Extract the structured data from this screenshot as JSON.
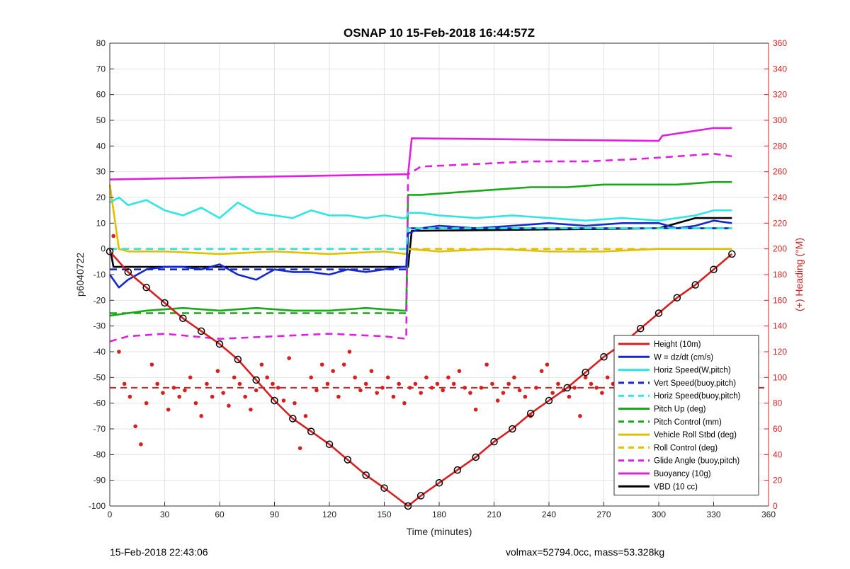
{
  "chart_data": {
    "type": "line",
    "title": "OSNAP 10 15-Feb-2018 16:44:57Z",
    "xlabel": "Time (minutes)",
    "ylabel": "p6040722",
    "ylabel_right": "(+) Heading (°M)",
    "xlim": [
      0,
      360
    ],
    "ylim": [
      -100,
      80
    ],
    "ylim_right": [
      0,
      360
    ],
    "x_ticks": [
      "0",
      "30",
      "60",
      "90",
      "120",
      "150",
      "180",
      "210",
      "240",
      "270",
      "300",
      "330",
      "360"
    ],
    "y_ticks": [
      "-100",
      "-90",
      "-80",
      "-70",
      "-60",
      "-50",
      "-40",
      "-30",
      "-20",
      "-10",
      "0",
      "10",
      "20",
      "30",
      "40",
      "50",
      "60",
      "70",
      "80"
    ],
    "y_ticks_right": [
      "0",
      "20",
      "40",
      "60",
      "80",
      "100",
      "120",
      "140",
      "160",
      "180",
      "200",
      "220",
      "240",
      "260",
      "280",
      "300",
      "320",
      "340",
      "360"
    ],
    "grid": true,
    "legend_position": "bottom-right",
    "series": [
      {
        "name": "Height (10m)",
        "color": "#d62020",
        "style": "solid",
        "x": [
          0,
          10,
          20,
          30,
          40,
          50,
          60,
          70,
          80,
          90,
          100,
          110,
          120,
          130,
          140,
          150,
          163,
          170,
          180,
          190,
          200,
          210,
          220,
          230,
          240,
          250,
          260,
          270,
          280,
          290,
          300,
          310,
          320,
          330,
          340
        ],
        "y": [
          -1,
          -9,
          -15,
          -21,
          -27,
          -32,
          -37,
          -43,
          -51,
          -59,
          -66,
          -71,
          -76,
          -82,
          -88,
          -93,
          -100,
          -96,
          -91,
          -86,
          -81,
          -75,
          -70,
          -64,
          -59,
          -54,
          -48,
          -42,
          -37,
          -31,
          -25,
          -19,
          -14,
          -8,
          -2
        ]
      },
      {
        "name": "W = dz/dt (cm/s)",
        "color": "#1428d0",
        "style": "solid",
        "x": [
          0,
          5,
          10,
          20,
          30,
          40,
          50,
          60,
          70,
          80,
          90,
          100,
          110,
          120,
          130,
          140,
          150,
          160,
          162,
          163,
          170,
          180,
          200,
          220,
          240,
          260,
          280,
          300,
          310,
          320,
          330,
          340
        ],
        "y": [
          -10,
          -15,
          -12,
          -8,
          -7,
          -7,
          -8,
          -6,
          -10,
          -12,
          -8,
          -9,
          -9,
          -10,
          -8,
          -9,
          -8,
          -7,
          -7,
          6,
          8,
          9,
          8,
          9,
          10,
          9,
          10,
          10,
          8,
          9,
          11,
          10
        ]
      },
      {
        "name": "Horiz Speed(W,pitch)",
        "color": "#2ee6e6",
        "style": "solid",
        "x": [
          0,
          5,
          10,
          20,
          30,
          40,
          50,
          60,
          70,
          80,
          90,
          100,
          110,
          120,
          130,
          140,
          150,
          160,
          162,
          163,
          170,
          180,
          200,
          220,
          240,
          260,
          280,
          300,
          310,
          320,
          330,
          340
        ],
        "y": [
          18,
          20,
          17,
          19,
          15,
          13,
          16,
          12,
          18,
          14,
          13,
          12,
          15,
          13,
          13,
          12,
          13,
          12,
          12,
          14,
          14,
          13,
          12,
          13,
          12,
          11,
          12,
          11,
          12,
          13,
          15,
          15
        ]
      },
      {
        "name": "Vert Speed(buoy,pitch)",
        "color": "#1428d0",
        "style": "dashed",
        "x": [
          0,
          162,
          163,
          340
        ],
        "y": [
          -8,
          -8,
          8,
          8
        ]
      },
      {
        "name": "Horiz Speed(buoy,pitch)",
        "color": "#2ee6e6",
        "style": "dashed",
        "x": [
          0,
          162,
          163,
          340
        ],
        "y": [
          0,
          0,
          8,
          8
        ]
      },
      {
        "name": "Pitch Up (deg)",
        "color": "#18a818",
        "style": "solid",
        "x": [
          0,
          10,
          20,
          40,
          60,
          80,
          100,
          120,
          140,
          160,
          162,
          163,
          170,
          190,
          210,
          230,
          250,
          270,
          290,
          310,
          330,
          340
        ],
        "y": [
          -26,
          -25,
          -24,
          -23,
          -24,
          -23,
          -24,
          -24,
          -23,
          -24,
          -24,
          21,
          21,
          22,
          23,
          24,
          24,
          25,
          25,
          25,
          26,
          26
        ]
      },
      {
        "name": "Pitch Control (mm)",
        "color": "#18a818",
        "style": "dashed",
        "x": [
          0,
          162,
          163,
          340
        ],
        "y": [
          -25,
          -25,
          8,
          8
        ]
      },
      {
        "name": "Vehicle Roll Stbd (deg)",
        "color": "#e0c000",
        "style": "solid",
        "x": [
          0,
          5,
          10,
          30,
          60,
          90,
          120,
          150,
          162,
          163,
          180,
          210,
          240,
          270,
          300,
          320,
          340
        ],
        "y": [
          25,
          0,
          -1,
          -1,
          -2,
          -1,
          -2,
          -1,
          -2,
          0,
          -1,
          0,
          -1,
          -1,
          0,
          0,
          0
        ]
      },
      {
        "name": "Roll Control (deg)",
        "color": "#e0c000",
        "style": "dashed",
        "x": [
          0,
          162,
          163,
          340
        ],
        "y": [
          0,
          0,
          0,
          0
        ]
      },
      {
        "name": "Glide Angle (buoy,pitch)",
        "color": "#e020e0",
        "style": "dashed",
        "x": [
          0,
          10,
          30,
          60,
          90,
          120,
          150,
          162,
          163,
          170,
          200,
          230,
          260,
          290,
          310,
          330,
          340
        ],
        "y": [
          -36,
          -34,
          -33,
          -35,
          -34,
          -33,
          -34,
          -35,
          29,
          32,
          33,
          34,
          34,
          35,
          36,
          37,
          36
        ]
      },
      {
        "name": "Buoyancy (10g)",
        "color": "#e020e0",
        "style": "solid",
        "x": [
          0,
          160,
          163,
          165,
          300,
          302,
          330,
          340
        ],
        "y": [
          27,
          29,
          29,
          43,
          42,
          44,
          47,
          47
        ]
      },
      {
        "name": "VBD (10 cc)",
        "color": "#000000",
        "style": "solid",
        "x": [
          0,
          1,
          2,
          163,
          165,
          300,
          320,
          340
        ],
        "y": [
          0,
          -3,
          -7,
          -7,
          7,
          8,
          12,
          12
        ]
      }
    ],
    "heading_scatter": {
      "color": "#d62020",
      "axis": "right",
      "mean_heading": 92,
      "x": [
        2,
        5,
        8,
        11,
        14,
        17,
        20,
        23,
        26,
        29,
        32,
        35,
        38,
        41,
        44,
        47,
        50,
        53,
        56,
        59,
        62,
        65,
        68,
        71,
        74,
        77,
        80,
        83,
        86,
        89,
        92,
        95,
        98,
        101,
        104,
        107,
        110,
        113,
        116,
        119,
        122,
        125,
        128,
        131,
        134,
        137,
        140,
        143,
        146,
        149,
        152,
        155,
        158,
        161,
        164,
        167,
        170,
        173,
        176,
        179,
        182,
        185,
        188,
        191,
        194,
        197,
        200,
        203,
        206,
        209,
        212,
        215,
        218,
        221,
        224,
        227,
        230,
        233,
        236,
        239,
        242,
        245,
        248,
        251,
        254,
        257,
        260,
        263,
        266,
        269,
        272,
        275,
        278,
        281,
        284,
        287,
        290,
        293,
        296,
        299,
        302,
        305,
        308,
        311,
        314,
        317,
        320,
        323,
        326,
        329,
        332,
        335,
        338
      ],
      "y": [
        210,
        120,
        95,
        85,
        62,
        48,
        80,
        110,
        95,
        88,
        75,
        92,
        85,
        90,
        100,
        80,
        70,
        95,
        85,
        105,
        88,
        78,
        100,
        95,
        85,
        75,
        90,
        110,
        100,
        95,
        92,
        82,
        115,
        80,
        45,
        70,
        100,
        90,
        110,
        95,
        105,
        85,
        110,
        120,
        100,
        90,
        95,
        105,
        88,
        92,
        100,
        85,
        95,
        80,
        92,
        95,
        88,
        100,
        92,
        95,
        90,
        100,
        95,
        105,
        92,
        88,
        75,
        92,
        110,
        95,
        82,
        88,
        95,
        100,
        90,
        85,
        70,
        92,
        105,
        110,
        88,
        95,
        90,
        85,
        92,
        70,
        100,
        95,
        92,
        88,
        100,
        95,
        110,
        70,
        80,
        92,
        95,
        100,
        90,
        110,
        95,
        75,
        90,
        85,
        95,
        92,
        100,
        110,
        95,
        118,
        105,
        110,
        98
      ]
    }
  },
  "footer": {
    "left": "15-Feb-2018 22:43:06",
    "right": "volmax=52794.0cc, mass=53.328kg"
  }
}
